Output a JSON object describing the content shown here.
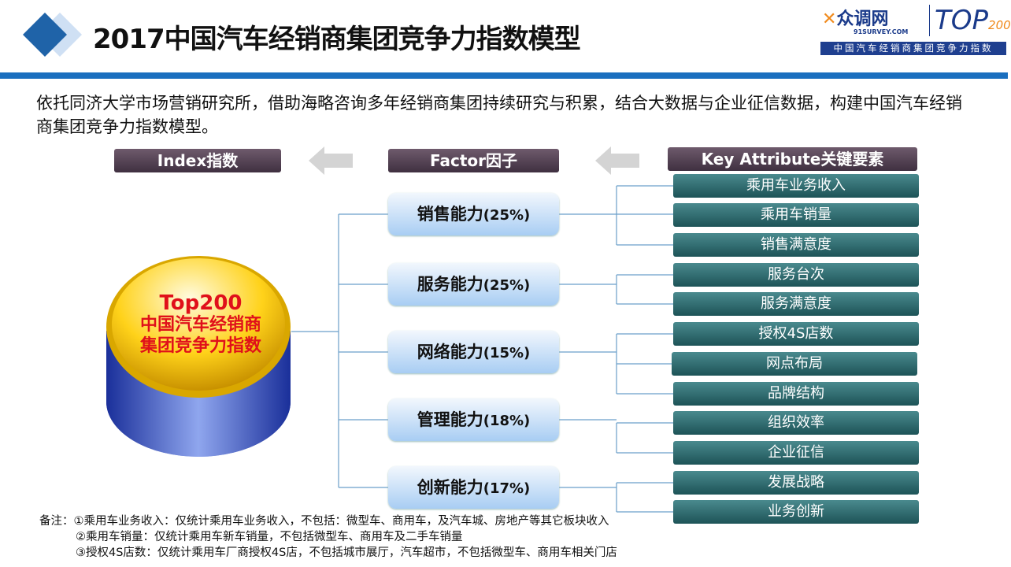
{
  "header": {
    "title": "2017中国汽车经销商集团竞争力指数模型",
    "logo_brand": "众调网",
    "logo_domain": "91SURVEY.COM",
    "logo_top": "TOP",
    "logo_200": "200",
    "logo_tagline": "中国汽车经销商集团竞争力指数"
  },
  "intro": "依托同济大学市场营销研究所，借助海略咨询多年经销商集团持续研究与积累，结合大数据与企业征信数据，构建中国汽车经销商集团竞争力指数模型。",
  "columns": {
    "index": "Index指数",
    "factor": "Factor因子",
    "attribute": "Key Attribute关键要素"
  },
  "index": {
    "line1": "Top200",
    "line2": "中国汽车经销商",
    "line3": "集团竞争力指数"
  },
  "factors": [
    {
      "label": "销售能力",
      "weight": "(25%)"
    },
    {
      "label": "服务能力",
      "weight": "(25%)"
    },
    {
      "label": "网络能力",
      "weight": "(15%)"
    },
    {
      "label": "管理能力",
      "weight": "(18%)"
    },
    {
      "label": "创新能力",
      "weight": "(17%)"
    }
  ],
  "attributes": [
    "乘用车业务收入",
    "乘用车销量",
    "销售满意度",
    "服务台次",
    "服务满意度",
    "授权4S店数",
    "网点布局",
    "品牌结构",
    "组织效率",
    "企业征信",
    "发展战略",
    "业务创新"
  ],
  "notes": [
    "备注：①乘用车业务收入：仅统计乘用车业务收入，不包括：微型车、商用车，及汽车城、房地产等其它板块收入",
    "②乘用车销量：仅统计乘用车新车销量，不包括微型车、商用车及二手车销量",
    "③授权4S店数：仅统计乘用车厂商授权4S店，不包括城市展厅，汽车超市，不包括微型车、商用车相关门店"
  ]
}
